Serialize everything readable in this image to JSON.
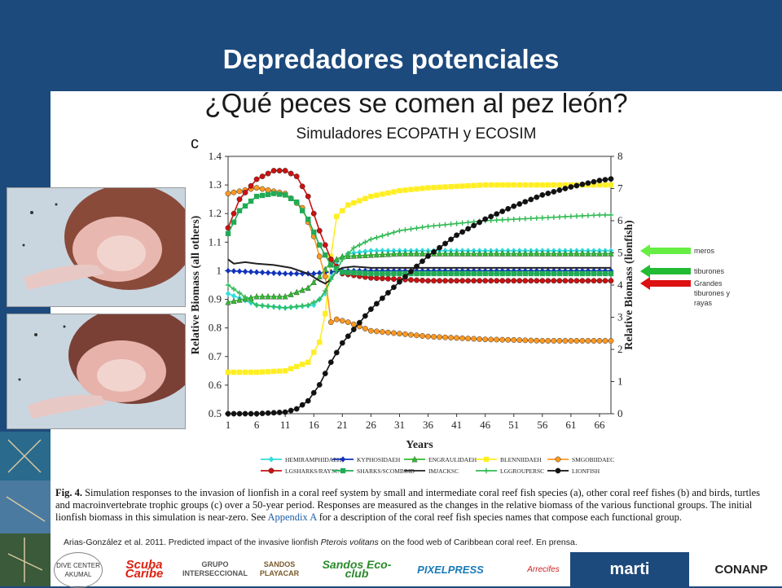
{
  "slide": {
    "title": "Depredadores potenciales",
    "subtitle": "¿Qué peces se comen al pez león?",
    "tool_label": "Simuladores ECOPATH y ECOSIM"
  },
  "arrows": [
    {
      "label": "meros",
      "color": "#66ee44"
    },
    {
      "label": "tiburones",
      "color": "#22bb33"
    },
    {
      "label": "Grandes tiburones y rayas",
      "color": "#dd1111"
    }
  ],
  "caption": {
    "fig_label": "Fig. 4.",
    "text_before": "Simulation responses to the invasion of lionfish in a coral reef system by small and intermediate coral reef fish species (a), other coral reef fishes (b) and birds, turtles and macroinvertebrate trophic groups (c) over a 50-year period. Responses are measured as the changes in the relative biomass of the various functional groups. The initial lionfish biomass in this simulation is near-zero. See ",
    "appendix": "Appendix A",
    "text_after": " for a description of the coral reef fish species names that compose each functional group."
  },
  "reference": {
    "before": "Arias-González et al. 2011.  Predicted impact of the invasive lionfish ",
    "species": "Pterois volitans",
    "after": " on the food web of Caribbean coral reef. En prensa."
  },
  "logos": [
    "DIVE CENTER AKUMAL",
    "Scuba Caribe",
    "GRUPO INTERSECCIONAL",
    "SANDOS PLAYACAR",
    "Sandos Eco-club",
    "PIXELPRESS",
    "Arrecifes",
    "marti",
    "CONANP"
  ],
  "chart_data": {
    "type": "line",
    "panel_label": "c",
    "xlabel": "Years",
    "ylabel": "Relative Biomass (all others)",
    "ylabel_right": "Relative Biomass (lionfish)",
    "x_ticks": [
      1,
      6,
      11,
      16,
      21,
      26,
      31,
      36,
      41,
      46,
      51,
      56,
      61,
      66
    ],
    "y_ticks": [
      0.5,
      0.6,
      0.7,
      0.8,
      0.9,
      1,
      1.1,
      1.2,
      1.3,
      1.4
    ],
    "y_right_ticks": [
      0,
      1,
      2,
      3,
      4,
      5,
      6,
      7,
      8
    ],
    "xlim": [
      1,
      68
    ],
    "ylim": [
      0.5,
      1.4
    ],
    "ylim_right": [
      0,
      8
    ],
    "legend_position": "bottom",
    "series": [
      {
        "name": "HEMIRAMPHIDAEH",
        "color": "#33dddd",
        "marker": "diamond",
        "axis": "left",
        "x": [
          1,
          6,
          11,
          16,
          18,
          20,
          22,
          26,
          31,
          36,
          41,
          46,
          51,
          56,
          61,
          66,
          68
        ],
        "y": [
          0.92,
          0.88,
          0.87,
          0.88,
          0.92,
          1.03,
          1.06,
          1.07,
          1.07,
          1.07,
          1.07,
          1.07,
          1.07,
          1.07,
          1.07,
          1.07,
          1.07
        ]
      },
      {
        "name": "KYPHOSIDAEH",
        "color": "#1133bb",
        "marker": "diamond",
        "axis": "left",
        "x": [
          1,
          6,
          11,
          16,
          21,
          26,
          31,
          36,
          41,
          46,
          51,
          56,
          61,
          66,
          68
        ],
        "y": [
          1.0,
          0.995,
          0.99,
          0.99,
          1.0,
          1.0,
          1.0,
          1.0,
          1.0,
          1.0,
          1.0,
          1.0,
          1.0,
          1.0,
          1.0
        ]
      },
      {
        "name": "ENGRAULIDAEH",
        "color": "#33bb33",
        "marker": "triangle",
        "axis": "left",
        "x": [
          1,
          6,
          11,
          15,
          17,
          19,
          21,
          26,
          31,
          36,
          41,
          46,
          51,
          56,
          61,
          66,
          68
        ],
        "y": [
          0.89,
          0.91,
          0.91,
          0.94,
          0.98,
          1.03,
          1.05,
          1.055,
          1.06,
          1.06,
          1.06,
          1.06,
          1.06,
          1.06,
          1.06,
          1.06,
          1.06
        ]
      },
      {
        "name": "BLENNIIDAEH",
        "color": "#ffee22",
        "marker": "square",
        "axis": "left",
        "x": [
          1,
          6,
          11,
          15,
          17,
          18,
          19,
          20,
          22,
          26,
          31,
          36,
          41,
          46,
          51,
          56,
          61,
          66,
          68
        ],
        "y": [
          0.645,
          0.645,
          0.65,
          0.68,
          0.75,
          0.85,
          1.05,
          1.19,
          1.23,
          1.26,
          1.28,
          1.29,
          1.295,
          1.3,
          1.3,
          1.3,
          1.3,
          1.3,
          1.3
        ]
      },
      {
        "name": "SMGOBIIDAEC",
        "color": "#ff9922",
        "marker": "circle",
        "axis": "left",
        "x": [
          1,
          6,
          11,
          14,
          16,
          18,
          19,
          20,
          22,
          26,
          31,
          36,
          41,
          46,
          51,
          56,
          61,
          66,
          68
        ],
        "y": [
          1.27,
          1.29,
          1.27,
          1.22,
          1.12,
          0.98,
          0.82,
          0.83,
          0.82,
          0.79,
          0.78,
          0.77,
          0.765,
          0.76,
          0.758,
          0.755,
          0.755,
          0.755,
          0.755
        ]
      },
      {
        "name": "LGSHARKS/RAYSC",
        "color": "#cc1111",
        "marker": "circle",
        "axis": "left",
        "x": [
          1,
          3,
          6,
          9,
          11,
          13,
          15,
          17,
          19,
          21,
          26,
          31,
          36,
          41,
          46,
          51,
          56,
          61,
          66,
          68
        ],
        "y": [
          1.15,
          1.25,
          1.32,
          1.35,
          1.35,
          1.33,
          1.26,
          1.14,
          1.04,
          0.99,
          0.975,
          0.97,
          0.965,
          0.965,
          0.965,
          0.965,
          0.965,
          0.965,
          0.965,
          0.965
        ]
      },
      {
        "name": "SHARKS/SCOMBRID",
        "color": "#22aa55",
        "marker": "square",
        "axis": "left",
        "x": [
          1,
          3,
          6,
          9,
          11,
          13,
          15,
          17,
          19,
          21,
          26,
          31,
          36,
          41,
          46,
          51,
          56,
          61,
          66,
          68
        ],
        "y": [
          1.13,
          1.21,
          1.26,
          1.27,
          1.265,
          1.24,
          1.18,
          1.09,
          1.02,
          0.995,
          0.99,
          0.99,
          0.99,
          0.99,
          0.99,
          0.99,
          0.99,
          0.99,
          0.99,
          0.99
        ]
      },
      {
        "name": "IMJACKSC",
        "color": "#222222",
        "marker": "none",
        "axis": "left",
        "x": [
          1,
          2,
          4,
          6,
          9,
          12,
          15,
          17,
          18,
          19,
          20,
          21,
          23,
          26,
          31,
          36,
          41,
          46,
          51,
          56,
          61,
          66,
          68
        ],
        "y": [
          1.04,
          1.025,
          1.03,
          1.025,
          1.02,
          1.01,
          0.99,
          0.965,
          0.955,
          0.97,
          1.0,
          1.01,
          1.015,
          1.01,
          1.01,
          1.01,
          1.01,
          1.01,
          1.01,
          1.01,
          1.01,
          1.01,
          1.01
        ]
      },
      {
        "name": "LGGROUPERSC",
        "color": "#33bb55",
        "marker": "plus",
        "axis": "left",
        "x": [
          1,
          6,
          11,
          15,
          17,
          18,
          19,
          20,
          21,
          23,
          26,
          31,
          36,
          41,
          46,
          51,
          56,
          61,
          66,
          68
        ],
        "y": [
          0.95,
          0.88,
          0.87,
          0.88,
          0.9,
          0.93,
          0.97,
          1.0,
          1.04,
          1.08,
          1.11,
          1.14,
          1.155,
          1.165,
          1.175,
          1.18,
          1.185,
          1.19,
          1.195,
          1.195
        ]
      },
      {
        "name": "LIONFISH",
        "color": "#111111",
        "marker": "circle",
        "axis": "right",
        "x": [
          1,
          6,
          11,
          13,
          15,
          17,
          19,
          21,
          26,
          31,
          36,
          41,
          46,
          51,
          56,
          61,
          66,
          68
        ],
        "y": [
          0.0,
          0.0,
          0.05,
          0.15,
          0.4,
          0.9,
          1.6,
          2.2,
          3.25,
          4.1,
          4.9,
          5.55,
          6.05,
          6.45,
          6.8,
          7.05,
          7.25,
          7.3
        ]
      }
    ]
  }
}
